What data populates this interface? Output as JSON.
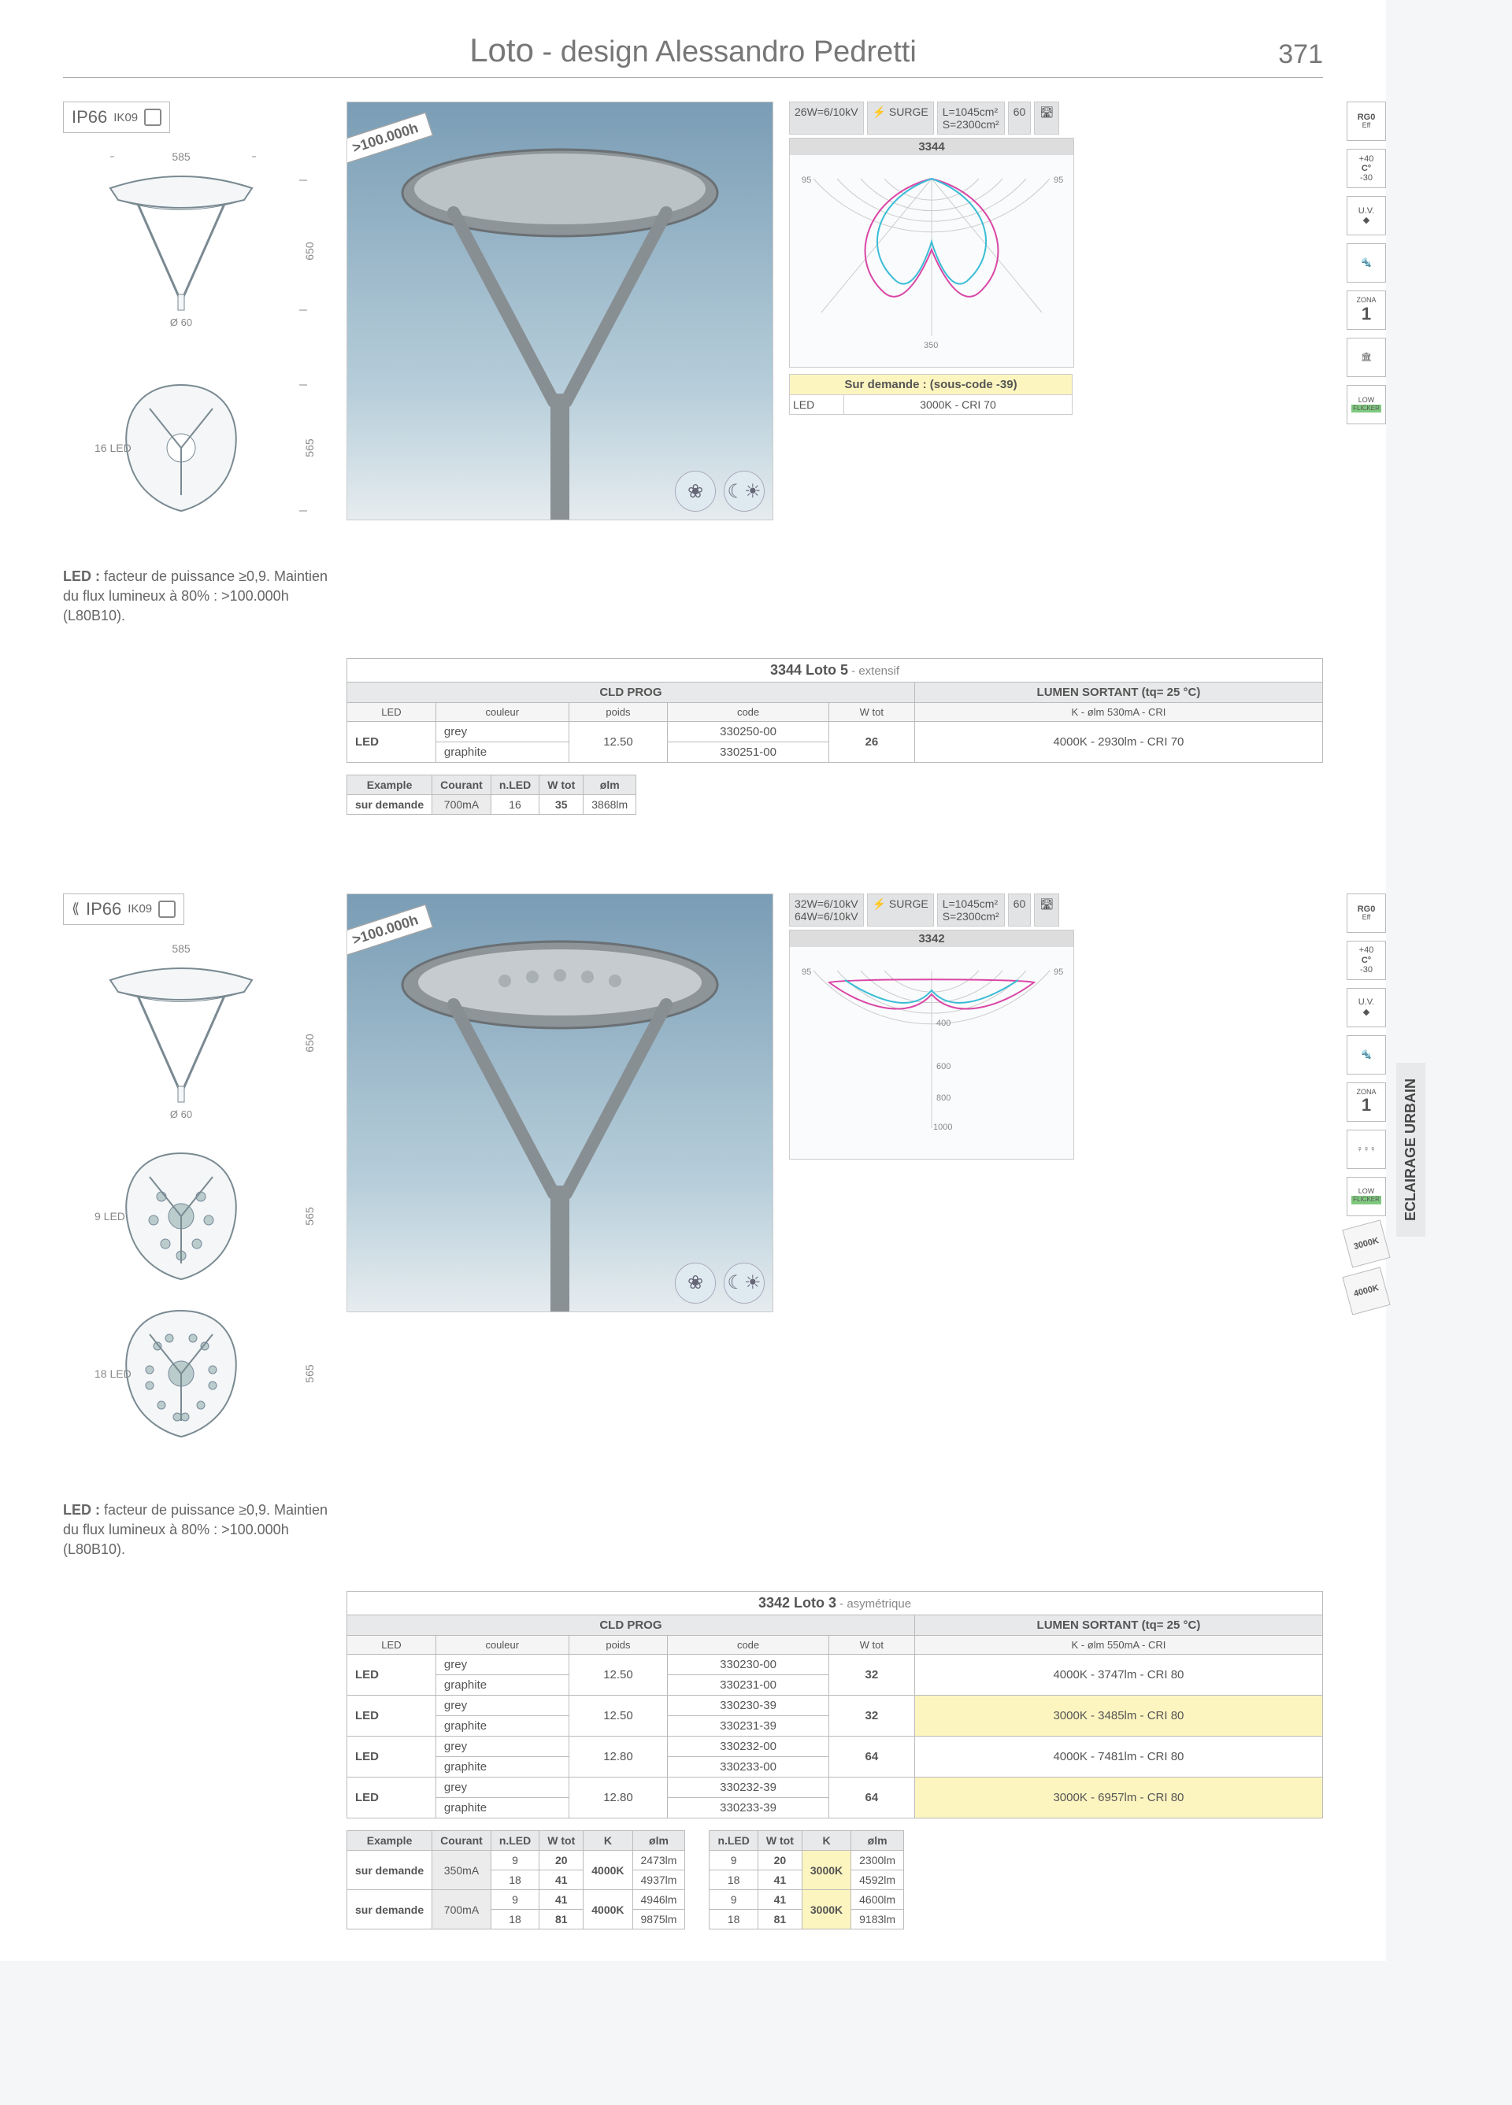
{
  "header": {
    "title_main": "Loto",
    "title_sub": " - design Alessandro Pedretti",
    "page_number": "371"
  },
  "side_tab": "ECLAIRAGE URBAIN",
  "common": {
    "ip_rating": "IP66",
    "ik_rating": "IK09",
    "dim_width": "585",
    "dim_center": "Ø 60",
    "dim_h1": "650",
    "dim_h2": "565",
    "tag": ">100.000h",
    "led_note_prefix": "LED : ",
    "led_note": "facteur de puissance ≥0,9. Maintien du flux lumineux à 80% : >100.000h (L80B10).",
    "spec_26w": "26W=6/10kV",
    "spec_32w": "32W=6/10kV",
    "spec_64w": "64W=6/10kV",
    "spec_l": "L=1045cm²",
    "spec_s": "S=2300cm²",
    "spec_surge": "SURGE",
    "spec_ø": "Ø",
    "spec_60": "60"
  },
  "feature_icons": {
    "rg0": "RG0",
    "eff": "Eff",
    "temp_hi": "+40",
    "temp_c": "C°",
    "temp_lo": "-30",
    "uv": "U.V.",
    "zona": "ZONA",
    "zona_n": "1",
    "low": "LOW",
    "flicker": "FLICKER",
    "k3000": "3000K",
    "k4000": "4000K"
  },
  "p1": {
    "leds": "16 LED",
    "polar_id": "3344",
    "demand_title": "Sur demande : (sous-code -39)",
    "demand_led": "LED",
    "demand_val": "3000K - CRI 70",
    "table": {
      "title": "3344 Loto 5",
      "title_sub": " - extensif",
      "cld": "CLD PROG",
      "lumen": "LUMEN SORTANT (tq= 25 °C)",
      "cols": {
        "led": "LED",
        "couleur": "couleur",
        "poids": "poids",
        "code": "code",
        "wtot": "W tot",
        "k": "K - ølm 530mA - CRI"
      },
      "rows": [
        {
          "led": "LED",
          "c1": "grey",
          "c2": "graphite",
          "poids": "12.50",
          "code1": "330250-00",
          "code2": "330251-00",
          "wtot": "26",
          "lumen": "4000K - 2930lm - CRI 70"
        }
      ]
    },
    "example": {
      "cols": {
        "example": "Example",
        "courant": "Courant",
        "nled": "n.LED",
        "wtot": "W tot",
        "olm": "ølm"
      },
      "row": {
        "label": "sur demande",
        "courant": "700mA",
        "nled": "16",
        "wtot": "35",
        "olm": "3868lm"
      }
    }
  },
  "p2": {
    "leds9": "9 LED",
    "leds18": "18 LED",
    "polar_id": "3342",
    "table": {
      "title": "3342 Loto 3",
      "title_sub": " - asymétrique",
      "cld": "CLD PROG",
      "lumen": "LUMEN SORTANT (tq= 25 °C)",
      "cols": {
        "led": "LED",
        "couleur": "couleur",
        "poids": "poids",
        "code": "code",
        "wtot": "W tot",
        "k": "K - ølm 550mA - CRI"
      },
      "rows": [
        {
          "led": "LED",
          "c1": "grey",
          "c2": "graphite",
          "poids": "12.50",
          "code1": "330230-00",
          "code2": "330231-00",
          "wtot": "32",
          "lumen": "4000K - 3747lm - CRI 80",
          "yl": false
        },
        {
          "led": "LED",
          "c1": "grey",
          "c2": "graphite",
          "poids": "12.50",
          "code1": "330230-39",
          "code2": "330231-39",
          "wtot": "32",
          "lumen": "3000K - 3485lm - CRI 80",
          "yl": true
        },
        {
          "led": "LED",
          "c1": "grey",
          "c2": "graphite",
          "poids": "12.80",
          "code1": "330232-00",
          "code2": "330233-00",
          "wtot": "64",
          "lumen": "4000K - 7481lm - CRI 80",
          "yl": false
        },
        {
          "led": "LED",
          "c1": "grey",
          "c2": "graphite",
          "poids": "12.80",
          "code1": "330232-39",
          "code2": "330233-39",
          "wtot": "64",
          "lumen": "3000K - 6957lm - CRI 80",
          "yl": true
        }
      ]
    },
    "example1": {
      "cols": {
        "example": "Example",
        "courant": "Courant",
        "nled": "n.LED",
        "wtot": "W tot",
        "k": "K",
        "olm": "ølm"
      },
      "rows": [
        {
          "label": "sur demande",
          "courant": "350mA",
          "nled1": "9",
          "wtot1": "20",
          "k": "4000K",
          "olm1": "2473lm",
          "nled2": "18",
          "wtot2": "41",
          "olm2": "4937lm"
        },
        {
          "label": "sur demande",
          "courant": "700mA",
          "nled1": "9",
          "wtot1": "41",
          "k": "4000K",
          "olm1": "4946lm",
          "nled2": "18",
          "wtot2": "81",
          "olm2": "9875lm"
        }
      ]
    },
    "example2": {
      "cols": {
        "nled": "n.LED",
        "wtot": "W tot",
        "k": "K",
        "olm": "ølm"
      },
      "rows": [
        {
          "nled1": "9",
          "wtot1": "20",
          "k": "3000K",
          "olm1": "2300lm",
          "nled2": "18",
          "wtot2": "41",
          "olm2": "4592lm"
        },
        {
          "nled1": "9",
          "wtot1": "41",
          "k": "3000K",
          "olm1": "4600lm",
          "nled2": "18",
          "wtot2": "81",
          "olm2": "9183lm"
        }
      ]
    }
  }
}
